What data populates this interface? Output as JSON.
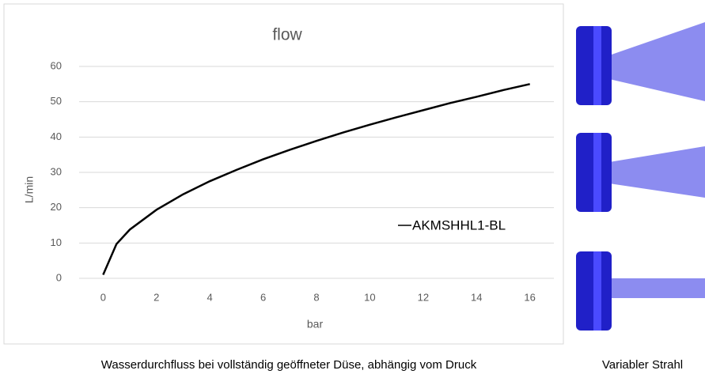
{
  "chart_data": {
    "type": "line",
    "title": "flow",
    "x_label": "bar",
    "y_label": "L/min",
    "x": [
      0,
      0.5,
      1,
      2,
      3,
      4,
      5,
      6,
      7,
      8,
      9,
      10,
      11,
      12,
      13,
      14,
      15,
      16
    ],
    "series": [
      {
        "name": "AKMSHHL1-BL",
        "color": "#000000",
        "values": [
          1,
          9.7,
          13.8,
          19.4,
          23.8,
          27.5,
          30.7,
          33.7,
          36.4,
          38.9,
          41.3,
          43.5,
          45.6,
          47.6,
          49.6,
          51.4,
          53.3,
          55
        ]
      }
    ],
    "xlim": [
      -0.9,
      16.9
    ],
    "xticks": [
      0,
      2,
      4,
      6,
      8,
      10,
      12,
      14,
      16
    ],
    "ylim": [
      0,
      60
    ],
    "yticks": [
      0,
      10,
      20,
      30,
      40,
      50,
      60
    ],
    "grid": true
  },
  "captions": {
    "chart": "Wasserdurchfluss bei vollständig geöffneter Düse, abhängig vom Druck",
    "image": "Variabler Strahl"
  }
}
